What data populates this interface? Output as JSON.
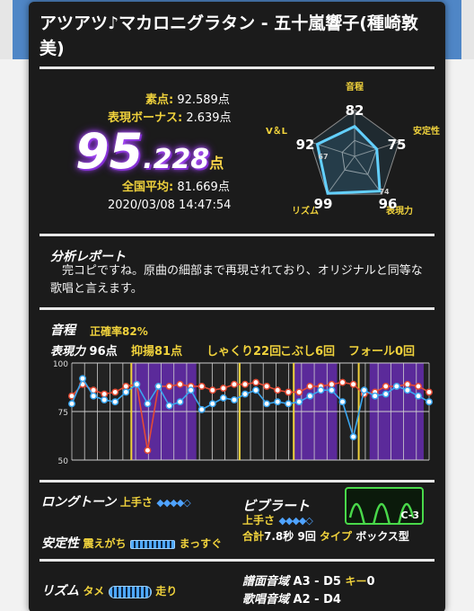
{
  "song": {
    "title": "アツアツ♪マカロニグラタン - 五十嵐響子(種崎敦美)"
  },
  "score": {
    "raw_label": "素点:",
    "raw_value": "92.589点",
    "bonus_label": "表現ボーナス:",
    "bonus_value": "2.639点",
    "total_int": "95",
    "total_dec": ".228",
    "total_unit": "点",
    "avg_label": "全国平均:",
    "avg_value": "81.669点",
    "datetime": "2020/03/08 14:47:54"
  },
  "radar": {
    "labels": [
      "音程",
      "安定性",
      "表現力",
      "リズム",
      "V＆L"
    ],
    "values": [
      82,
      75,
      96,
      99,
      92
    ],
    "averages": [
      67,
      74
    ],
    "avg_points": [
      67,
      75,
      74,
      68,
      64
    ],
    "value_labels": [
      "82",
      "75",
      "96",
      "99",
      "92"
    ],
    "avg_labels": [
      "67",
      "74"
    ]
  },
  "report": {
    "title": "分析レポート",
    "text": "完コピですね。原曲の細部まで再現されており、オリジナルと同等な歌唱と言えます。"
  },
  "pitch": {
    "title": "音程",
    "accuracy_label": "正確率",
    "accuracy_value": "82%",
    "expression_label": "表現力",
    "expression_value": "96点",
    "dynamics_label": "抑揚",
    "dynamics_value": "81点",
    "shakuri_label": "しゃくり",
    "shakuri_value": "22回",
    "kobushi_label": "こぶし",
    "kobushi_value": "6回",
    "fall_label": "フォール",
    "fall_value": "0回"
  },
  "chart_data": {
    "type": "line",
    "ylim": [
      50,
      100
    ],
    "yticks": [
      "100",
      "75",
      "50"
    ],
    "x": [
      1,
      2,
      3,
      4,
      5,
      6,
      7,
      8,
      9,
      10,
      11,
      12,
      13,
      14,
      15,
      16,
      17,
      18,
      19,
      20,
      21,
      22,
      23,
      24,
      25,
      26,
      27,
      28,
      29,
      30,
      31,
      32,
      33,
      34
    ],
    "series": [
      {
        "values": [
          83,
          89,
          86,
          84,
          85,
          88,
          89,
          55,
          88,
          88,
          89,
          88,
          88,
          86,
          87,
          89,
          89,
          90,
          88,
          86,
          85,
          85,
          88,
          88,
          89,
          90,
          89,
          84,
          85,
          88,
          88,
          89,
          88,
          85
        ]
      },
      {
        "values": [
          79,
          92,
          83,
          81,
          80,
          85,
          89,
          79,
          88,
          78,
          80,
          86,
          76,
          79,
          82,
          81,
          84,
          86,
          79,
          80,
          79,
          80,
          83,
          86,
          86,
          80,
          62,
          86,
          83,
          84,
          88,
          86,
          83,
          80
        ]
      }
    ],
    "highlight_ranges": [
      [
        7,
        12
      ],
      [
        22,
        25
      ],
      [
        29,
        33
      ]
    ],
    "markers": [
      6,
      16,
      21,
      27
    ]
  },
  "longtone": {
    "label": "ロングトーン",
    "skill_label": "上手さ",
    "diamonds": "◆◆◆◆◇"
  },
  "vibrato": {
    "label": "ビブラート",
    "skill_label": "上手さ",
    "diamonds": "◆◆◆◆◇",
    "total_label": "合計",
    "total_value": "7.8秒",
    "count": "9回",
    "type_label": "タイプ",
    "type_value": "ボックス型",
    "badge": "C-3"
  },
  "stability": {
    "label": "安定性",
    "left": "震えがち",
    "right": "まっすぐ"
  },
  "rhythm": {
    "label": "リズム",
    "left": "タメ",
    "right": "走り"
  },
  "range": {
    "score_label": "譜面音域",
    "score_value": "A3 - D5",
    "key_label": "キー",
    "key_value": "0",
    "sing_label": "歌唱音域",
    "sing_value": "A2 - D4"
  },
  "colors": {
    "yellow": "#f0d23c",
    "purple": "#5b2a9a",
    "blue": "#3aa6f0",
    "red": "#e44b34",
    "green": "#49d94a"
  }
}
